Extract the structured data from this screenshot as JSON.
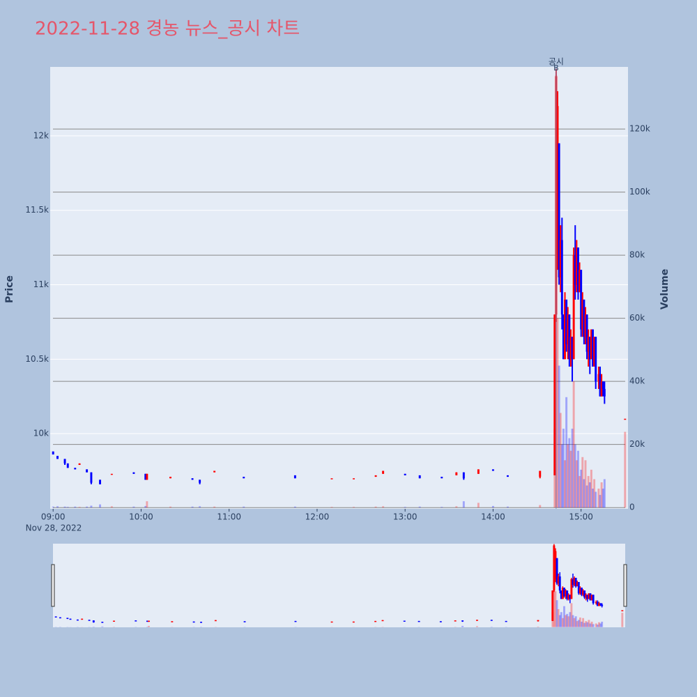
{
  "chart_data": {
    "type": "candlestick",
    "title": "2022-11-28 경농 뉴스_공시 차트",
    "y_title": "Price",
    "y2_title": "Volume",
    "x_sublabel": "Nov 28, 2022",
    "increasing_color": "#ff0000",
    "decreasing_color": "#0000ff",
    "x": [
      "2022-11-28 09:00",
      "2022-11-28 09:03",
      "2022-11-28 09:08",
      "2022-11-28 09:10",
      "2022-11-28 09:15",
      "2022-11-28 09:18",
      "2022-11-28 09:23",
      "2022-11-28 09:26",
      "2022-11-28 09:32",
      "2022-11-28 09:40",
      "2022-11-28 09:55",
      "2022-11-28 10:03",
      "2022-11-28 10:04",
      "2022-11-28 10:20",
      "2022-11-28 10:35",
      "2022-11-28 10:40",
      "2022-11-28 10:50",
      "2022-11-28 11:10",
      "2022-11-28 11:45",
      "2022-11-28 12:10",
      "2022-11-28 12:25",
      "2022-11-28 12:40",
      "2022-11-28 12:45",
      "2022-11-28 13:00",
      "2022-11-28 13:10",
      "2022-11-28 13:25",
      "2022-11-28 13:35",
      "2022-11-28 13:40",
      "2022-11-28 13:50",
      "2022-11-28 14:00",
      "2022-11-28 14:10",
      "2022-11-28 14:32",
      "2022-11-28 14:42",
      "2022-11-28 14:43",
      "2022-11-28 14:44",
      "2022-11-28 14:45",
      "2022-11-28 14:46",
      "2022-11-28 14:47",
      "2022-11-28 14:48",
      "2022-11-28 14:49",
      "2022-11-28 14:50",
      "2022-11-28 14:51",
      "2022-11-28 14:52",
      "2022-11-28 14:53",
      "2022-11-28 14:54",
      "2022-11-28 14:55",
      "2022-11-28 14:56",
      "2022-11-28 14:57",
      "2022-11-28 14:58",
      "2022-11-28 14:59",
      "2022-11-28 15:00",
      "2022-11-28 15:01",
      "2022-11-28 15:02",
      "2022-11-28 15:03",
      "2022-11-28 15:04",
      "2022-11-28 15:05",
      "2022-11-28 15:06",
      "2022-11-28 15:07",
      "2022-11-28 15:08",
      "2022-11-28 15:09",
      "2022-11-28 15:10",
      "2022-11-28 15:12",
      "2022-11-28 15:13",
      "2022-11-28 15:14",
      "2022-11-28 15:15",
      "2022-11-28 15:16",
      "2022-11-28 15:30"
    ],
    "open": [
      9880,
      9850,
      9830,
      9800,
      9770,
      9790,
      9760,
      9740,
      9690,
      9730,
      9740,
      9730,
      9690,
      9700,
      9700,
      9690,
      9740,
      9710,
      9720,
      9700,
      9700,
      9710,
      9730,
      9730,
      9720,
      9710,
      9720,
      9740,
      9730,
      9760,
      9720,
      9710,
      9720,
      10800,
      11200,
      11950,
      11050,
      11300,
      10800,
      10500,
      10900,
      10600,
      10800,
      10500,
      10650,
      10500,
      11200,
      11000,
      11250,
      10950,
      11100,
      10700,
      10900,
      10650,
      10800,
      10550,
      10650,
      10500,
      10700,
      10450,
      10650,
      10350,
      10400,
      10250,
      10350,
      10300,
      10100
    ],
    "high": [
      9880,
      9850,
      9830,
      9800,
      9770,
      9800,
      9760,
      9740,
      9690,
      9730,
      9740,
      9730,
      9730,
      9710,
      9700,
      9690,
      9750,
      9710,
      9720,
      9700,
      9700,
      9720,
      9750,
      9730,
      9720,
      9710,
      9740,
      9740,
      9760,
      9760,
      9720,
      9750,
      10800,
      12450,
      12300,
      11950,
      11400,
      11450,
      10800,
      10950,
      10900,
      10850,
      10800,
      10700,
      10650,
      11250,
      11400,
      11300,
      11250,
      11150,
      11100,
      10950,
      10900,
      10850,
      10800,
      10700,
      10650,
      10700,
      10700,
      10650,
      10650,
      10450,
      10450,
      10400,
      10350,
      10350,
      10100
    ],
    "low": [
      9860,
      9830,
      9790,
      9770,
      9760,
      9790,
      9740,
      9660,
      9660,
      9730,
      9730,
      9690,
      9690,
      9700,
      9690,
      9660,
      9740,
      9700,
      9700,
      9700,
      9700,
      9710,
      9730,
      9720,
      9700,
      9700,
      9720,
      9690,
      9730,
      9750,
      9710,
      9700,
      9720,
      10750,
      11100,
      11000,
      10950,
      10700,
      10500,
      10500,
      10550,
      10500,
      10450,
      10450,
      10350,
      10500,
      10900,
      10950,
      10900,
      10950,
      10650,
      10650,
      10600,
      10600,
      10500,
      10450,
      10400,
      10500,
      10450,
      10450,
      10300,
      10300,
      10250,
      10250,
      10250,
      10200,
      10100
    ],
    "close": [
      9860,
      9830,
      9800,
      9770,
      9760,
      9800,
      9740,
      9670,
      9660,
      9730,
      9730,
      9690,
      9730,
      9710,
      9690,
      9670,
      9750,
      9700,
      9700,
      9700,
      9700,
      9720,
      9750,
      9720,
      9700,
      9700,
      9740,
      9700,
      9760,
      9750,
      9710,
      9750,
      10800,
      12400,
      12200,
      11050,
      11300,
      10800,
      10500,
      10900,
      10600,
      10800,
      10500,
      10650,
      10500,
      11200,
      11000,
      11250,
      10950,
      11100,
      10700,
      10900,
      10650,
      10800,
      10550,
      10650,
      10500,
      10700,
      10450,
      10650,
      10350,
      10400,
      10250,
      10350,
      10300,
      10250,
      10100
    ],
    "volume": [
      300,
      400,
      300,
      200,
      300,
      200,
      300,
      600,
      1000,
      400,
      300,
      500,
      2000,
      300,
      300,
      400,
      300,
      300,
      300,
      200,
      200,
      300,
      400,
      200,
      300,
      200,
      400,
      2000,
      1500,
      500,
      300,
      800,
      25000,
      137000,
      60000,
      45000,
      30000,
      20000,
      25000,
      15000,
      35000,
      20000,
      22000,
      18000,
      25000,
      40000,
      20000,
      15000,
      18000,
      10000,
      12000,
      16000,
      9000,
      15000,
      7000,
      10000,
      8000,
      12000,
      6000,
      9000,
      5000,
      6000,
      4000,
      8000,
      6000,
      9000,
      24000
    ],
    "xlim": [
      "2022-11-28 08:58",
      "2022-11-28 15:32"
    ],
    "xticks": [
      {
        "value": "2022-11-28 09:00",
        "label": "09:00"
      },
      {
        "value": "2022-11-28 10:00",
        "label": "10:00"
      },
      {
        "value": "2022-11-28 11:00",
        "label": "11:00"
      },
      {
        "value": "2022-11-28 12:00",
        "label": "12:00"
      },
      {
        "value": "2022-11-28 13:00",
        "label": "13:00"
      },
      {
        "value": "2022-11-28 14:00",
        "label": "14:00"
      },
      {
        "value": "2022-11-28 15:00",
        "label": "15:00"
      }
    ],
    "ylim": [
      9495,
      12463
    ],
    "yticks": [
      {
        "value": 10000,
        "label": "10k"
      },
      {
        "value": 10500,
        "label": "10.5k"
      },
      {
        "value": 11000,
        "label": "11k"
      },
      {
        "value": 11500,
        "label": "11.5k"
      },
      {
        "value": 12000,
        "label": "12k"
      }
    ],
    "y2lim": [
      -400,
      139700
    ],
    "y2ticks": [
      0,
      {
        "value": 20000,
        "label": "20k"
      },
      {
        "value": 40000,
        "label": "40k"
      },
      {
        "value": 60000,
        "label": "60k"
      },
      {
        "value": 80000,
        "label": "80k"
      },
      {
        "value": 100000,
        "label": "100k"
      },
      {
        "value": 120000,
        "label": "120k"
      }
    ],
    "annotation": {
      "x": "2022-11-28 14:43",
      "text": "공시",
      "marker": "B"
    },
    "rangeslider": true
  }
}
